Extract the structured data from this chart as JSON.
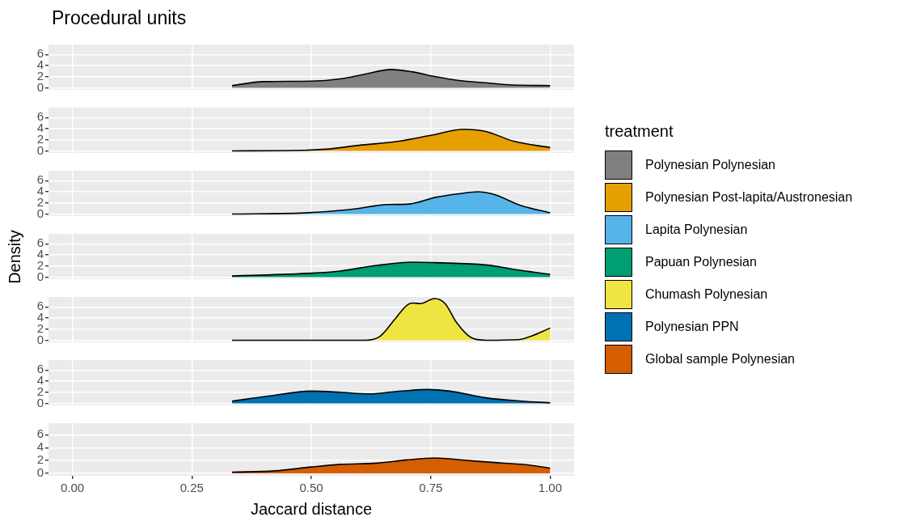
{
  "chart_data": [
    {
      "type": "area",
      "title": "Procedural units",
      "legend_title": "treatment",
      "legend": "right",
      "grid": true,
      "tick_labels": "y",
      "xlim": [
        -0.05,
        1.05
      ],
      "xticks": [
        0,
        0.25,
        0.5,
        0.75,
        1
      ],
      "ylim": [
        -0.37,
        7.8
      ],
      "yticks": [
        0,
        2,
        4,
        6
      ],
      "x": [
        0.334,
        0.4,
        0.5,
        0.56,
        0.61,
        0.667,
        0.71,
        0.76,
        0.81,
        0.865,
        0.92,
        1.0
      ],
      "series": [
        {
          "name": "Polynesian Polynesian",
          "color": "#808080",
          "values": [
            0.4,
            1.1,
            1.2,
            1.6,
            2.4,
            3.3,
            2.9,
            2.0,
            1.3,
            0.9,
            0.5,
            0.4
          ]
        }
      ]
    },
    {
      "type": "area",
      "legend": "right",
      "grid": true,
      "tick_labels": "y",
      "xlim": [
        -0.05,
        1.05
      ],
      "xticks": [
        0,
        0.25,
        0.5,
        0.75,
        1
      ],
      "ylim": [
        -0.37,
        7.8
      ],
      "yticks": [
        0,
        2,
        4,
        6
      ],
      "x": [
        0.334,
        0.485,
        0.53,
        0.6,
        0.68,
        0.75,
        0.82,
        0.865,
        0.925,
        1.0
      ],
      "series": [
        {
          "name": "Polynesian Post-lapita/Austronesian",
          "color": "#e69f00",
          "values": [
            0,
            0.1,
            0.3,
            1.0,
            1.7,
            2.8,
            3.9,
            3.5,
            1.7,
            0.6
          ]
        }
      ]
    },
    {
      "type": "area",
      "legend": "right",
      "grid": true,
      "tick_labels": "y",
      "xlim": [
        -0.05,
        1.05
      ],
      "xticks": [
        0,
        0.25,
        0.5,
        0.75,
        1
      ],
      "ylim": [
        -0.37,
        7.8
      ],
      "yticks": [
        0,
        2,
        4,
        6
      ],
      "x": [
        0.334,
        0.485,
        0.58,
        0.66,
        0.705,
        0.76,
        0.805,
        0.85,
        0.88,
        0.94,
        1.0
      ],
      "series": [
        {
          "name": "Lapita Polynesian",
          "color": "#56b4e9",
          "values": [
            0,
            0.2,
            0.8,
            1.7,
            1.8,
            3.0,
            3.6,
            4.0,
            3.6,
            1.5,
            0.2
          ]
        }
      ]
    },
    {
      "type": "area",
      "ylabel": "Density",
      "legend": "right",
      "grid": true,
      "tick_labels": "y",
      "xlim": [
        -0.05,
        1.05
      ],
      "xticks": [
        0,
        0.25,
        0.5,
        0.75,
        1
      ],
      "ylim": [
        -0.37,
        7.8
      ],
      "yticks": [
        0,
        2,
        4,
        6
      ],
      "x": [
        0.334,
        0.5,
        0.56,
        0.637,
        0.713,
        0.76,
        0.865,
        0.94,
        1.0
      ],
      "series": [
        {
          "name": "Papuan Polynesian",
          "color": "#009e73",
          "values": [
            0.2,
            0.7,
            1.1,
            2.1,
            2.7,
            2.6,
            2.2,
            1.2,
            0.5
          ]
        }
      ]
    },
    {
      "type": "area",
      "legend": "right",
      "grid": true,
      "tick_labels": "y",
      "xlim": [
        -0.05,
        1.05
      ],
      "xticks": [
        0,
        0.25,
        0.5,
        0.75,
        1
      ],
      "ylim": [
        -0.37,
        7.8
      ],
      "yticks": [
        0,
        2,
        4,
        6
      ],
      "x": [
        0.334,
        0.614,
        0.644,
        0.675,
        0.7,
        0.713,
        0.728,
        0.758,
        0.78,
        0.804,
        0.834,
        0.865,
        0.933,
        0.956,
        1.0
      ],
      "series": [
        {
          "name": "Chumash Polynesian",
          "color": "#f0e442",
          "values": [
            0,
            0,
            0.7,
            3.8,
            6.3,
            6.7,
            6.6,
            7.5,
            6.6,
            3.2,
            0.5,
            0,
            0.1,
            0.6,
            2.2
          ]
        }
      ]
    },
    {
      "type": "area",
      "legend": "right",
      "grid": true,
      "tick_labels": "y",
      "xlim": [
        -0.05,
        1.05
      ],
      "xticks": [
        0,
        0.25,
        0.5,
        0.75,
        1
      ],
      "ylim": [
        -0.37,
        7.8
      ],
      "yticks": [
        0,
        2,
        4,
        6
      ],
      "x": [
        0.334,
        0.41,
        0.5,
        0.56,
        0.62,
        0.675,
        0.743,
        0.79,
        0.865,
        0.94,
        1.0
      ],
      "series": [
        {
          "name": "Polynesian PPN",
          "color": "#0072b2",
          "values": [
            0.4,
            1.3,
            2.2,
            2.0,
            1.7,
            2.1,
            2.5,
            2.2,
            1.0,
            0.4,
            0.1
          ]
        }
      ]
    },
    {
      "type": "area",
      "xlabel": "Jaccard distance",
      "legend": "right",
      "grid": true,
      "xlim": [
        -0.05,
        1.05
      ],
      "xticks": [
        {
          "value": 0,
          "label": "0.00"
        },
        {
          "value": 0.25,
          "label": "0.25"
        },
        {
          "value": 0.5,
          "label": "0.50"
        },
        {
          "value": 0.75,
          "label": "0.75"
        },
        {
          "value": 1,
          "label": "1.00"
        }
      ],
      "ylim": [
        -0.37,
        7.8
      ],
      "yticks": [
        0,
        2,
        4,
        6
      ],
      "x": [
        0.334,
        0.424,
        0.5,
        0.56,
        0.637,
        0.7,
        0.758,
        0.827,
        0.9,
        0.956,
        1.0
      ],
      "series": [
        {
          "name": "Global sample Polynesian",
          "color": "#d55e00",
          "values": [
            0.2,
            0.4,
            1.0,
            1.4,
            1.6,
            2.1,
            2.4,
            2.0,
            1.6,
            1.3,
            0.8
          ]
        }
      ]
    }
  ]
}
